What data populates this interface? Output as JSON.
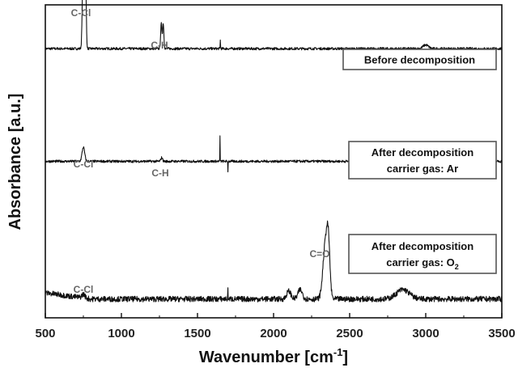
{
  "chart_data": {
    "type": "line",
    "xlabel": "Wavenumber [cm",
    "xlabel_sup": "-1",
    "xlabel_suffix": "]",
    "ylabel": "Absorbance [a.u.]",
    "xlim": [
      500,
      3500
    ],
    "x_ticks": [
      500,
      1000,
      1500,
      2000,
      2500,
      3000,
      3500
    ],
    "y_ticks_labeled": false,
    "grid": false,
    "series": [
      {
        "legend": [
          "Before decomposition"
        ],
        "baseline": 0.86,
        "noise": 0.004,
        "peaks": [
          {
            "x": 750,
            "height": 0.35,
            "width": 8
          },
          {
            "x": 765,
            "height": 0.2,
            "width": 6
          },
          {
            "x": 1262,
            "height": 0.08,
            "width": 6
          },
          {
            "x": 1275,
            "height": 0.08,
            "width": 6
          },
          {
            "x": 1650,
            "height": 0.03,
            "width": 1.5
          },
          {
            "x": 3000,
            "height": 0.012,
            "width": 25
          }
        ],
        "labels": [
          {
            "text": "C-Cl",
            "x": 750,
            "y": 0.45
          },
          {
            "text": "C-H",
            "x": 1268,
            "y": 1.105
          }
        ]
      },
      {
        "legend": [
          "After decomposition",
          "carrier gas: Ar"
        ],
        "baseline": 0.5,
        "noise": 0.004,
        "peaks": [
          {
            "x": 750,
            "height": 0.045,
            "width": 12
          },
          {
            "x": 1265,
            "height": 0.012,
            "width": 8
          },
          {
            "x": 1648,
            "height": 0.08,
            "width": 1.2
          },
          {
            "x": 1700,
            "height": -0.035,
            "width": 1.2
          }
        ],
        "labels": [
          {
            "text": "C-Cl",
            "x": 750,
            "y": 0.595
          },
          {
            "text": "C-H",
            "x": 1268,
            "y": 0.53
          }
        ]
      },
      {
        "legend": [
          "After decomposition",
          "carrier gas: O"
        ],
        "legend_sub": "2",
        "baseline": 0.06,
        "noise": 0.009,
        "peaks": [
          {
            "x": 2100,
            "height": 0.025,
            "width": 20
          },
          {
            "x": 2175,
            "height": 0.03,
            "width": 20
          },
          {
            "x": 2340,
            "height": 0.17,
            "width": 22
          },
          {
            "x": 2360,
            "height": 0.15,
            "width": 15
          },
          {
            "x": 1700,
            "height": 0.03,
            "width": 1.5
          },
          {
            "x": 2850,
            "height": 0.03,
            "width": 60
          },
          {
            "x": 750,
            "height": 0.012,
            "width": 15
          }
        ],
        "labels": [
          {
            "text": "C-Cl",
            "x": 750,
            "y": 0.1
          },
          {
            "text": "C=O",
            "x": 2350,
            "y": 0.25
          }
        ]
      }
    ]
  }
}
